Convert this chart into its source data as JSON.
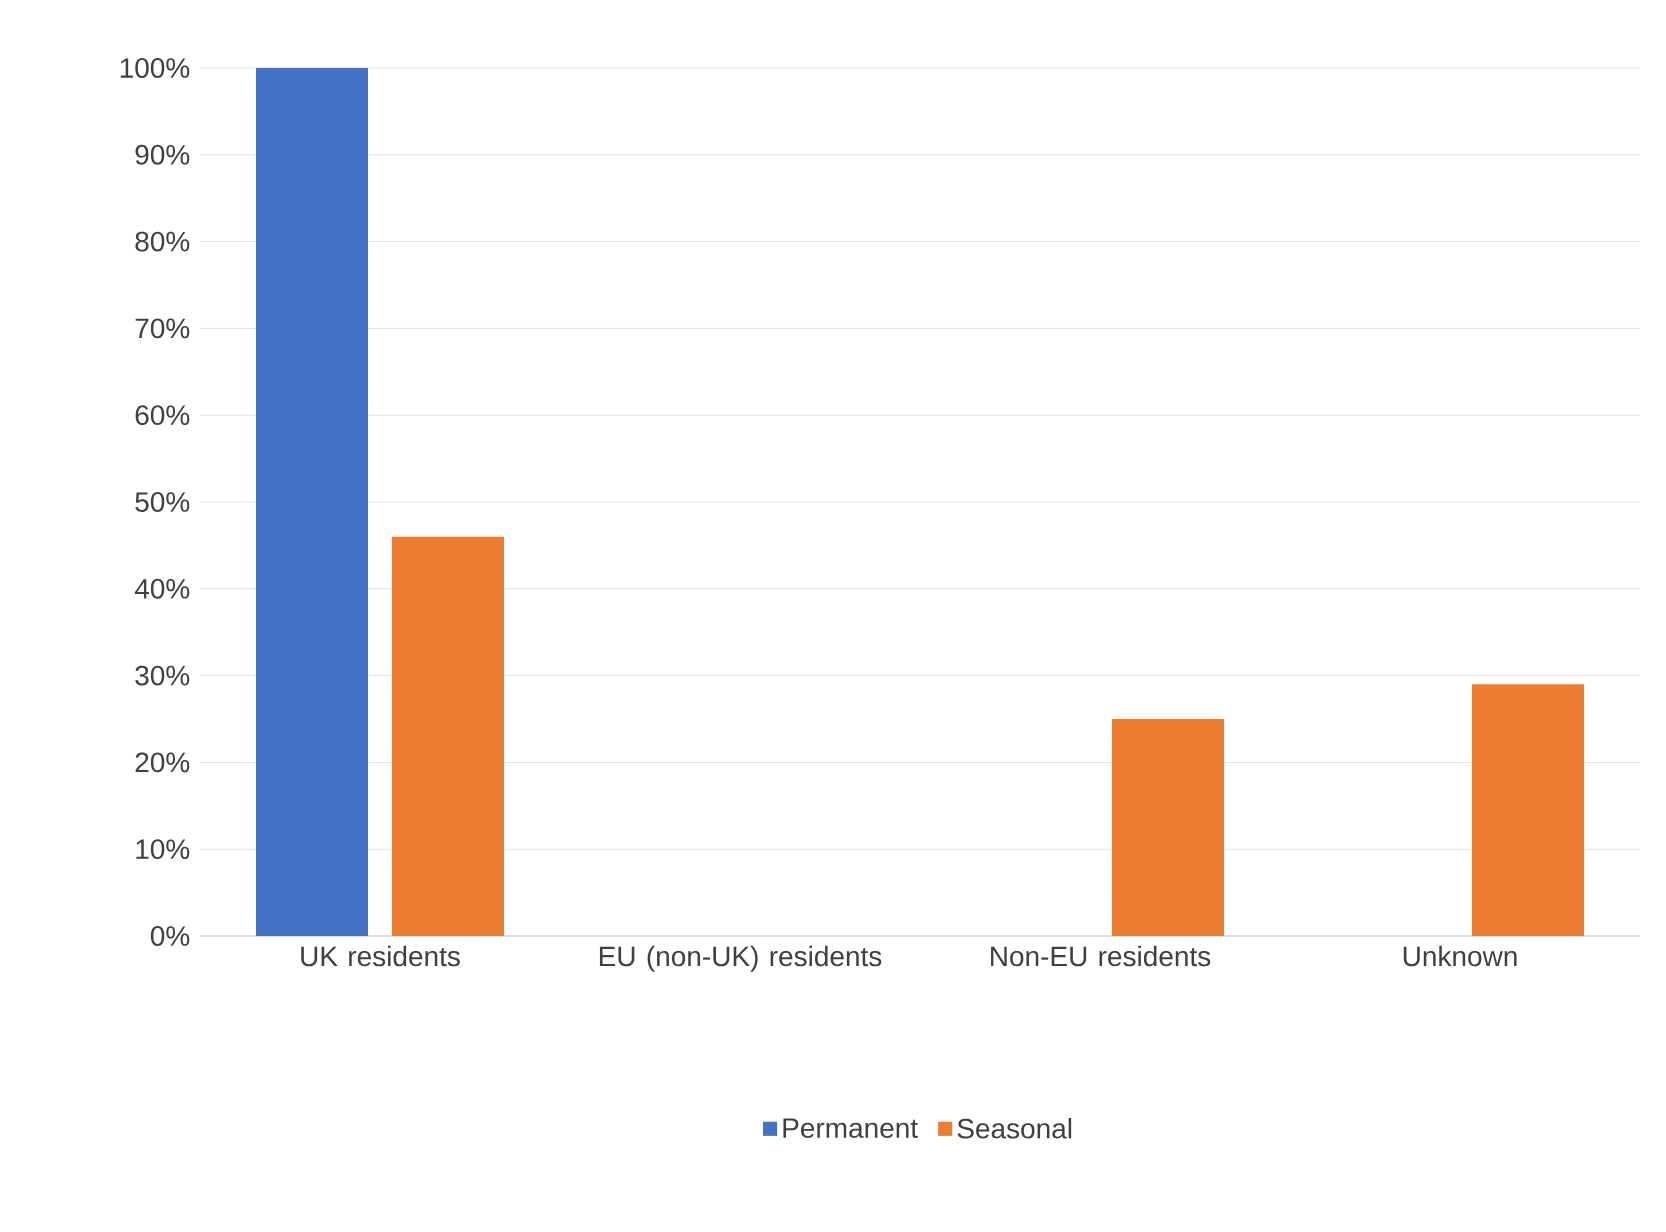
{
  "chart_data": {
    "type": "bar",
    "categories": [
      "UK residents",
      "EU (non-UK) residents",
      "Non-EU residents",
      "Unknown"
    ],
    "series": [
      {
        "name": "Permanent",
        "color": "#4472c4",
        "values": [
          100,
          0,
          0,
          0
        ]
      },
      {
        "name": "Seasonal",
        "color": "#ed7d31",
        "values": [
          46,
          0,
          25,
          29
        ]
      }
    ],
    "ylim": [
      0,
      100
    ],
    "yticks": [
      {
        "value": 0,
        "label": "0%"
      },
      {
        "value": 10,
        "label": "10%"
      },
      {
        "value": 20,
        "label": "20%"
      },
      {
        "value": 30,
        "label": "30%"
      },
      {
        "value": 40,
        "label": "40%"
      },
      {
        "value": 50,
        "label": "50%"
      },
      {
        "value": 60,
        "label": "60%"
      },
      {
        "value": 70,
        "label": "70%"
      },
      {
        "value": 80,
        "label": "80%"
      },
      {
        "value": 90,
        "label": "90%"
      },
      {
        "value": 100,
        "label": "100%"
      }
    ],
    "grid": "y",
    "legend": "bottom"
  }
}
